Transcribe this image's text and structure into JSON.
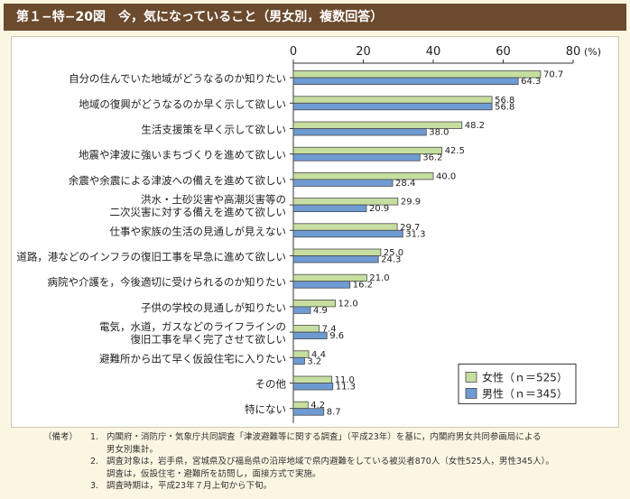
{
  "figure_title": "第１−特−20図　今，気になっていること（男女別，複数回答）",
  "colors": {
    "female": "#c6dea0",
    "male": "#6f9bd3",
    "bar_border": "#4a4a4a",
    "title_bg": "#6b4a2e"
  },
  "chart_data": {
    "type": "bar",
    "orientation": "horizontal",
    "unit": "(%)",
    "xlim": [
      0,
      80
    ],
    "ticks": [
      "0",
      "20",
      "40",
      "60",
      "80"
    ],
    "categories": [
      [
        "自分の住んでいた地域がどうなるのか知りたい"
      ],
      [
        "地域の復興がどうなるのか早く示して欲しい"
      ],
      [
        "生活支援策を早く示して欲しい"
      ],
      [
        "地震や津波に強いまちづくりを進めて欲しい"
      ],
      [
        "余震や余震による津波への備えを進めて欲しい"
      ],
      [
        "洪水・土砂災害や高潮災害等の",
        "二次災害に対する備えを進めて欲しい"
      ],
      [
        "仕事や家族の生活の見通しが見えない"
      ],
      [
        "道路，港などのインフラの復旧工事を早急に進めて欲しい"
      ],
      [
        "病院や介護を，今後適切に受けられるのか知りたい"
      ],
      [
        "子供の学校の見通しが知りたい"
      ],
      [
        "電気，水道，ガスなどのライフラインの",
        "復旧工事を早く完了させて欲しい"
      ],
      [
        "避難所から出て早く仮設住宅に入りたい"
      ],
      [
        "その他"
      ],
      [
        "特にない"
      ]
    ],
    "series": [
      {
        "name": "女性（ｎ＝525）",
        "values": [
          70.7,
          56.8,
          48.2,
          42.5,
          40.0,
          29.9,
          29.7,
          25.0,
          21.0,
          12.0,
          7.4,
          4.4,
          11.0,
          4.2
        ]
      },
      {
        "name": "男性（ｎ＝345）",
        "values": [
          64.3,
          56.8,
          38.0,
          36.2,
          28.4,
          20.9,
          31.3,
          24.3,
          16.2,
          4.9,
          9.6,
          3.2,
          11.3,
          8.7
        ]
      }
    ],
    "legend_position": "bottom-right"
  },
  "notes": {
    "label": "（備考）",
    "items": [
      {
        "num": "1.",
        "lines": [
          "内閣府・消防庁・気象庁共同調査「津波避難等に関する調査」（平成23年）を基に，内閣府男女共同参画局による",
          "男女別集計。"
        ]
      },
      {
        "num": "2.",
        "lines": [
          "調査対象は，岩手県，宮城県及び福島県の沿岸地域で県内避難をしている被災者870人（女性525人，男性345人）。",
          "調査は，仮設住宅・避難所を訪問し，面接方式で実施。"
        ]
      },
      {
        "num": "3.",
        "lines": [
          "調査時期は，平成23年７月上旬から下旬。"
        ]
      }
    ]
  }
}
